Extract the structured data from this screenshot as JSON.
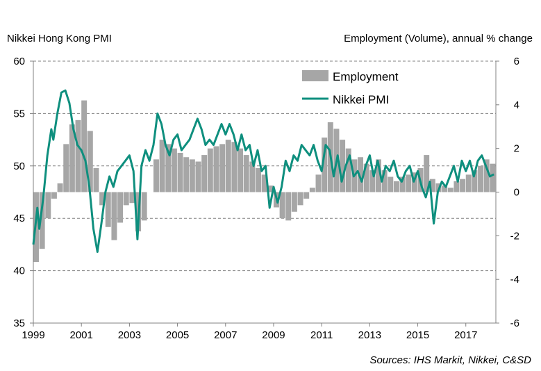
{
  "left_axis_title": "Nikkei Hong Kong PMI",
  "right_axis_title": "Employment (Volume), annual % change",
  "source": "Sources: IHS Markit, Nikkei, C&SD",
  "colors": {
    "bars": "#a6a6a6",
    "line": "#0e8f7e",
    "grid": "#808080",
    "axis": "#808080"
  },
  "chart_data": {
    "type": "bar+line",
    "x_range": [
      "1999-01",
      "2018-03"
    ],
    "x_ticks": [
      "1999",
      "2001",
      "2003",
      "2005",
      "2007",
      "2009",
      "2011",
      "2013",
      "2015",
      "2017"
    ],
    "left_axis": {
      "ticks": [
        "35",
        "40",
        "45",
        "50",
        "55",
        "60"
      ],
      "min": 35,
      "max": 60
    },
    "right_axis": {
      "ticks": [
        "-6",
        "-4",
        "-2",
        "0",
        "2",
        "4",
        "6"
      ],
      "min": -6,
      "max": 6
    },
    "grid": "dashed horizontal",
    "legend_position": "top-center",
    "legend": [
      {
        "label": "Employment",
        "kind": "bar"
      },
      {
        "label": "Nikkei PMI",
        "kind": "line"
      }
    ],
    "series": [
      {
        "name": "Employment",
        "type": "bar",
        "axis": "right",
        "frequency": "quarterly",
        "points": [
          [
            "1999-01",
            -3.2
          ],
          [
            "1999-04",
            -2.6
          ],
          [
            "1999-07",
            -1.2
          ],
          [
            "1999-10",
            -0.3
          ],
          [
            "2000-01",
            0.4
          ],
          [
            "2000-04",
            2.2
          ],
          [
            "2000-07",
            3.1
          ],
          [
            "2000-10",
            3.3
          ],
          [
            "2001-01",
            4.2
          ],
          [
            "2001-04",
            2.8
          ],
          [
            "2001-07",
            1.1
          ],
          [
            "2001-10",
            -0.6
          ],
          [
            "2002-01",
            -1.6
          ],
          [
            "2002-04",
            -2.2
          ],
          [
            "2002-07",
            -1.4
          ],
          [
            "2002-10",
            -0.6
          ],
          [
            "2003-01",
            -0.5
          ],
          [
            "2003-04",
            -1.8
          ],
          [
            "2003-07",
            -1.3
          ],
          [
            "2003-10",
            0.0
          ],
          [
            "2004-01",
            1.5
          ],
          [
            "2004-04",
            2.4
          ],
          [
            "2004-07",
            2.2
          ],
          [
            "2004-10",
            2.0
          ],
          [
            "2005-01",
            1.8
          ],
          [
            "2005-04",
            1.6
          ],
          [
            "2005-07",
            1.5
          ],
          [
            "2005-10",
            1.4
          ],
          [
            "2006-01",
            1.7
          ],
          [
            "2006-04",
            2.0
          ],
          [
            "2006-07",
            2.1
          ],
          [
            "2006-10",
            2.2
          ],
          [
            "2007-01",
            2.4
          ],
          [
            "2007-04",
            2.3
          ],
          [
            "2007-07",
            2.0
          ],
          [
            "2007-10",
            1.7
          ],
          [
            "2008-01",
            1.4
          ],
          [
            "2008-04",
            1.1
          ],
          [
            "2008-07",
            0.8
          ],
          [
            "2008-10",
            0.3
          ],
          [
            "2009-01",
            -0.7
          ],
          [
            "2009-04",
            -1.2
          ],
          [
            "2009-07",
            -1.3
          ],
          [
            "2009-10",
            -0.9
          ],
          [
            "2010-01",
            -0.6
          ],
          [
            "2010-04",
            -0.3
          ],
          [
            "2010-07",
            0.2
          ],
          [
            "2010-10",
            0.8
          ],
          [
            "2011-01",
            2.5
          ],
          [
            "2011-04",
            3.2
          ],
          [
            "2011-07",
            2.9
          ],
          [
            "2011-10",
            2.4
          ],
          [
            "2012-01",
            2.0
          ],
          [
            "2012-04",
            1.5
          ],
          [
            "2012-07",
            1.6
          ],
          [
            "2012-10",
            1.3
          ],
          [
            "2013-01",
            1.0
          ],
          [
            "2013-04",
            1.5
          ],
          [
            "2013-07",
            1.0
          ],
          [
            "2013-10",
            0.7
          ],
          [
            "2014-01",
            0.5
          ],
          [
            "2014-04",
            0.7
          ],
          [
            "2014-07",
            0.8
          ],
          [
            "2014-10",
            0.9
          ],
          [
            "2015-01",
            1.1
          ],
          [
            "2015-04",
            1.7
          ],
          [
            "2015-07",
            0.6
          ],
          [
            "2015-10",
            0.4
          ],
          [
            "2016-01",
            0.3
          ],
          [
            "2016-04",
            0.2
          ],
          [
            "2016-07",
            0.5
          ],
          [
            "2016-10",
            0.6
          ],
          [
            "2017-01",
            0.8
          ],
          [
            "2017-04",
            1.0
          ],
          [
            "2017-07",
            1.2
          ],
          [
            "2017-10",
            1.5
          ],
          [
            "2018-01",
            1.3
          ]
        ]
      },
      {
        "name": "Nikkei PMI",
        "type": "line",
        "axis": "left",
        "frequency": "monthly",
        "points": [
          [
            "1999-01",
            42.5
          ],
          [
            "1999-03",
            46.0
          ],
          [
            "1999-04",
            44.0
          ],
          [
            "1999-06",
            47.0
          ],
          [
            "1999-08",
            51.0
          ],
          [
            "1999-10",
            53.5
          ],
          [
            "1999-11",
            52.5
          ],
          [
            "2000-01",
            55.0
          ],
          [
            "2000-03",
            57.0
          ],
          [
            "2000-05",
            57.2
          ],
          [
            "2000-07",
            56.0
          ],
          [
            "2000-09",
            53.5
          ],
          [
            "2000-11",
            52.0
          ],
          [
            "2001-01",
            51.5
          ],
          [
            "2001-03",
            50.5
          ],
          [
            "2001-05",
            48.0
          ],
          [
            "2001-07",
            44.0
          ],
          [
            "2001-09",
            41.8
          ],
          [
            "2001-11",
            44.5
          ],
          [
            "2002-01",
            47.5
          ],
          [
            "2002-03",
            49.0
          ],
          [
            "2002-05",
            48.0
          ],
          [
            "2002-07",
            49.5
          ],
          [
            "2002-09",
            50.0
          ],
          [
            "2002-11",
            50.5
          ],
          [
            "2003-01",
            51.0
          ],
          [
            "2003-03",
            49.5
          ],
          [
            "2003-05",
            43.0
          ],
          [
            "2003-07",
            50.0
          ],
          [
            "2003-09",
            51.5
          ],
          [
            "2003-11",
            50.5
          ],
          [
            "2004-01",
            52.0
          ],
          [
            "2004-03",
            55.0
          ],
          [
            "2004-05",
            54.0
          ],
          [
            "2004-07",
            52.0
          ],
          [
            "2004-09",
            51.0
          ],
          [
            "2004-11",
            52.5
          ],
          [
            "2005-01",
            53.0
          ],
          [
            "2005-03",
            51.5
          ],
          [
            "2005-05",
            52.0
          ],
          [
            "2005-07",
            52.5
          ],
          [
            "2005-09",
            53.5
          ],
          [
            "2005-11",
            54.5
          ],
          [
            "2006-01",
            53.5
          ],
          [
            "2006-03",
            52.0
          ],
          [
            "2006-05",
            52.5
          ],
          [
            "2006-07",
            52.0
          ],
          [
            "2006-09",
            53.0
          ],
          [
            "2006-11",
            54.0
          ],
          [
            "2007-01",
            53.0
          ],
          [
            "2007-03",
            54.0
          ],
          [
            "2007-05",
            53.0
          ],
          [
            "2007-07",
            51.5
          ],
          [
            "2007-09",
            53.0
          ],
          [
            "2007-11",
            51.5
          ],
          [
            "2008-01",
            52.0
          ],
          [
            "2008-03",
            50.0
          ],
          [
            "2008-05",
            51.5
          ],
          [
            "2008-07",
            49.5
          ],
          [
            "2008-09",
            50.0
          ],
          [
            "2008-11",
            46.0
          ],
          [
            "2009-01",
            48.0
          ],
          [
            "2009-03",
            46.5
          ],
          [
            "2009-05",
            48.0
          ],
          [
            "2009-07",
            50.5
          ],
          [
            "2009-09",
            49.5
          ],
          [
            "2009-11",
            51.0
          ],
          [
            "2010-01",
            50.5
          ],
          [
            "2010-03",
            52.0
          ],
          [
            "2010-05",
            51.5
          ],
          [
            "2010-07",
            51.0
          ],
          [
            "2010-09",
            52.0
          ],
          [
            "2010-11",
            50.5
          ],
          [
            "2011-01",
            49.5
          ],
          [
            "2011-03",
            52.0
          ],
          [
            "2011-05",
            51.5
          ],
          [
            "2011-07",
            49.0
          ],
          [
            "2011-09",
            51.0
          ],
          [
            "2011-11",
            48.5
          ],
          [
            "2012-01",
            50.0
          ],
          [
            "2012-03",
            51.0
          ],
          [
            "2012-05",
            49.0
          ],
          [
            "2012-07",
            49.5
          ],
          [
            "2012-09",
            48.5
          ],
          [
            "2012-11",
            50.0
          ],
          [
            "2013-01",
            51.0
          ],
          [
            "2013-03",
            49.0
          ],
          [
            "2013-05",
            50.5
          ],
          [
            "2013-07",
            48.5
          ],
          [
            "2013-09",
            50.0
          ],
          [
            "2013-11",
            49.5
          ],
          [
            "2014-01",
            50.5
          ],
          [
            "2014-03",
            49.0
          ],
          [
            "2014-05",
            48.5
          ],
          [
            "2014-07",
            49.5
          ],
          [
            "2014-09",
            50.0
          ],
          [
            "2014-11",
            48.5
          ],
          [
            "2015-01",
            49.5
          ],
          [
            "2015-03",
            48.0
          ],
          [
            "2015-05",
            47.0
          ],
          [
            "2015-07",
            48.5
          ],
          [
            "2015-09",
            44.5
          ],
          [
            "2015-11",
            47.5
          ],
          [
            "2016-01",
            48.5
          ],
          [
            "2016-03",
            48.0
          ],
          [
            "2016-05",
            49.0
          ],
          [
            "2016-07",
            50.0
          ],
          [
            "2016-09",
            48.5
          ],
          [
            "2016-11",
            50.5
          ],
          [
            "2017-01",
            49.5
          ],
          [
            "2017-03",
            50.5
          ],
          [
            "2017-05",
            49.0
          ],
          [
            "2017-07",
            50.5
          ],
          [
            "2017-09",
            51.0
          ],
          [
            "2017-11",
            50.0
          ],
          [
            "2018-01",
            49.0
          ],
          [
            "2018-03",
            49.2
          ]
        ]
      }
    ]
  }
}
